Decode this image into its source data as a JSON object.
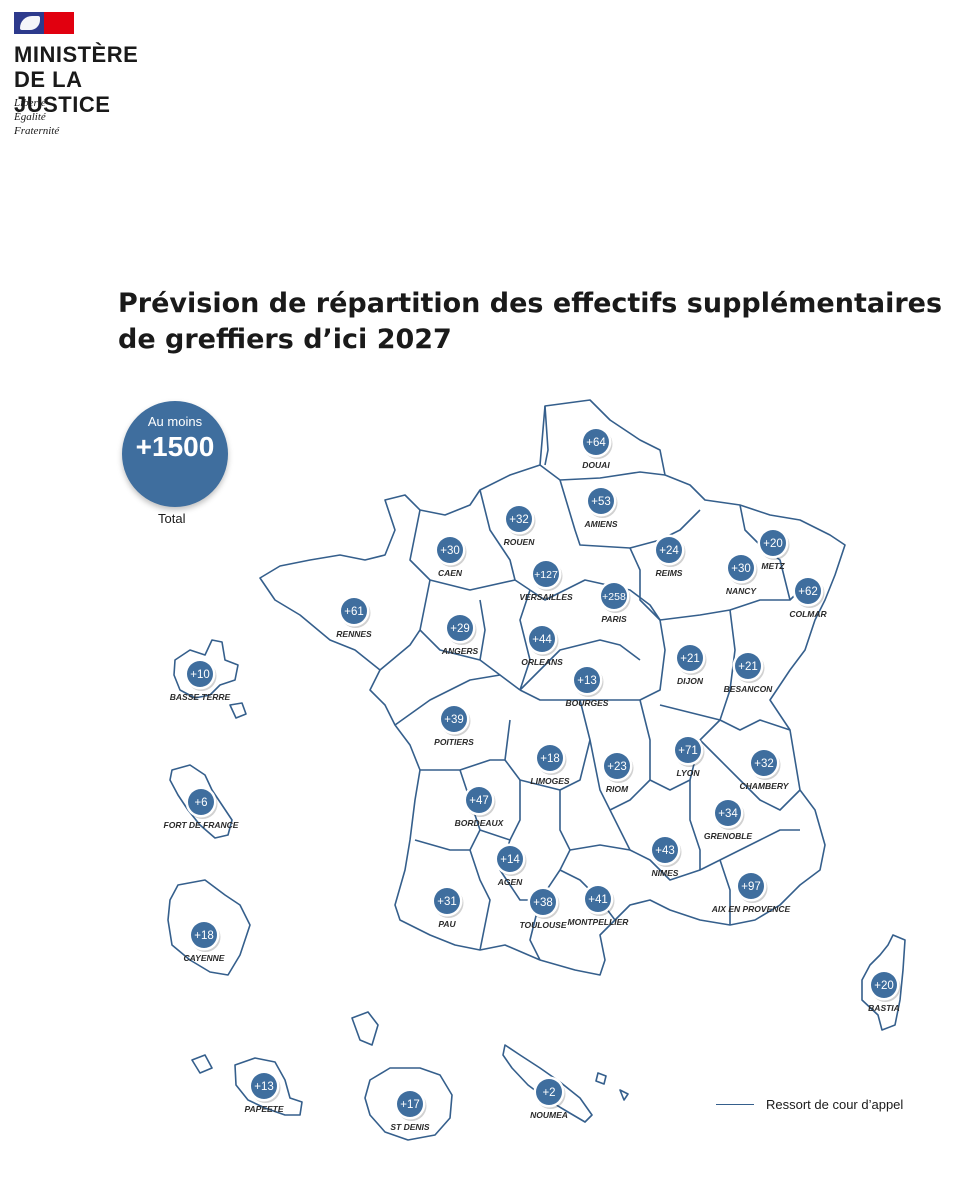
{
  "header": {
    "ministry_line1": "MINISTÈRE",
    "ministry_line2": "DE LA JUSTICE",
    "motto": [
      "Liberté",
      "Égalité",
      "Fraternité"
    ]
  },
  "title_line1": "Prévision de répartition des effectifs supplémentaires",
  "title_line2": "de greffiers d’ici 2027",
  "total": {
    "prefix": "Au moins",
    "value": "+1500",
    "label": "Total"
  },
  "legend": {
    "label": "Ressort de cour d’appel"
  },
  "colors": {
    "marker": "#3f6e9e",
    "outline": "#355f8c"
  },
  "courts": [
    {
      "name": "DOUAI",
      "value": "+64"
    },
    {
      "name": "AMIENS",
      "value": "+53"
    },
    {
      "name": "ROUEN",
      "value": "+32"
    },
    {
      "name": "CAEN",
      "value": "+30"
    },
    {
      "name": "VERSAILLES",
      "value": "+127"
    },
    {
      "name": "PARIS",
      "value": "+258"
    },
    {
      "name": "REIMS",
      "value": "+24"
    },
    {
      "name": "METZ",
      "value": "+20"
    },
    {
      "name": "NANCY",
      "value": "+30"
    },
    {
      "name": "COLMAR",
      "value": "+62"
    },
    {
      "name": "RENNES",
      "value": "+61"
    },
    {
      "name": "ANGERS",
      "value": "+29"
    },
    {
      "name": "ORLEANS",
      "value": "+44"
    },
    {
      "name": "DIJON",
      "value": "+21"
    },
    {
      "name": "BESANCON",
      "value": "+21"
    },
    {
      "name": "BOURGES",
      "value": "+13"
    },
    {
      "name": "POITIERS",
      "value": "+39"
    },
    {
      "name": "LIMOGES",
      "value": "+18"
    },
    {
      "name": "RIOM",
      "value": "+23"
    },
    {
      "name": "LYON",
      "value": "+71"
    },
    {
      "name": "CHAMBERY",
      "value": "+32"
    },
    {
      "name": "BORDEAUX",
      "value": "+47"
    },
    {
      "name": "GRENOBLE",
      "value": "+34"
    },
    {
      "name": "AGEN",
      "value": "+14"
    },
    {
      "name": "NIMES",
      "value": "+43"
    },
    {
      "name": "AIX EN PROVENCE",
      "value": "+97"
    },
    {
      "name": "PAU",
      "value": "+31"
    },
    {
      "name": "TOULOUSE",
      "value": "+38"
    },
    {
      "name": "MONTPELLIER",
      "value": "+41"
    },
    {
      "name": "BASTIA",
      "value": "+20"
    },
    {
      "name": "BASSE TERRE",
      "value": "+10"
    },
    {
      "name": "FORT DE FRANCE",
      "value": "+6"
    },
    {
      "name": "CAYENNE",
      "value": "+18"
    },
    {
      "name": "PAPEETE",
      "value": "+13"
    },
    {
      "name": "ST DENIS",
      "value": "+17"
    },
    {
      "name": "NOUMEA",
      "value": "+2"
    }
  ]
}
